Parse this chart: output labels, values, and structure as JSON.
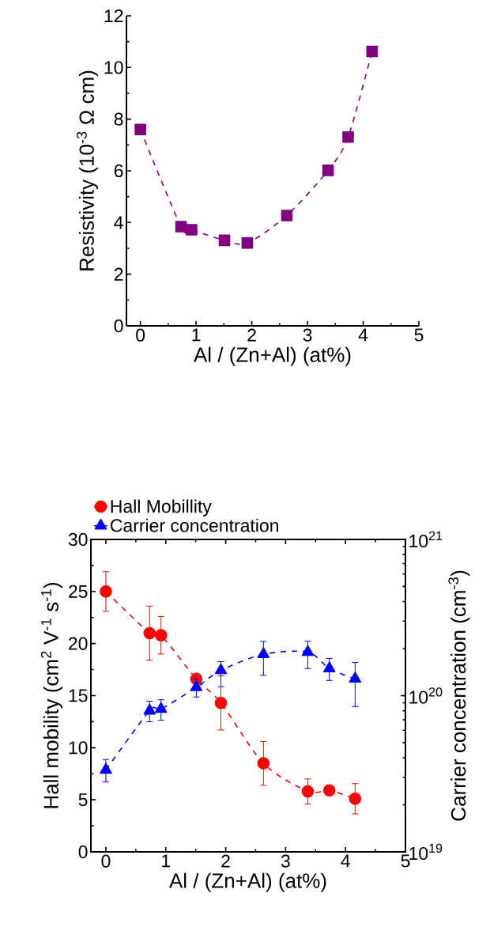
{
  "chart_data": [
    {
      "type": "line",
      "xlabel": "Al / (Zn+Al) (at%)",
      "ylabel": "Resistivity (10$^{-3}$ Ω cm)",
      "x": [
        0,
        0.73,
        0.92,
        1.51,
        1.92,
        2.63,
        3.37,
        3.73,
        4.16
      ],
      "series": [
        {
          "color": "#800080",
          "marker": "square",
          "line_style": "dashed",
          "values": [
            7.6,
            3.84,
            3.72,
            3.31,
            3.21,
            4.27,
            6.02,
            7.31,
            10.62
          ]
        }
      ],
      "xlim": [
        -0.25,
        5
      ],
      "xticks": [
        0,
        1,
        2,
        3,
        4,
        5
      ],
      "ylim": [
        0,
        12
      ],
      "yticks": [
        0,
        2,
        4,
        6,
        8,
        10,
        12
      ]
    },
    {
      "type": "line",
      "xlabel": "Al / (Zn+Al) (at%)",
      "ylabel": "Hall mobility (cm$^{2}$ V$^{-1}$ s$^{-1}$)",
      "y2label": "Carrier concentration (cm$^{-3}$)",
      "x": [
        0,
        0.73,
        0.92,
        1.51,
        1.92,
        2.63,
        3.37,
        3.73,
        4.16
      ],
      "series": [
        {
          "name": "Hall Mobillity",
          "color": "#ff0000",
          "marker": "circle",
          "line_style": "dashed",
          "values": [
            25.0,
            21.0,
            20.8,
            16.6,
            14.3,
            8.5,
            5.8,
            5.9,
            5.1
          ],
          "errors": [
            1.9,
            2.6,
            1.8,
            null,
            2.6,
            2.1,
            1.2,
            null,
            1.45
          ]
        },
        {
          "name": "Carrier concentration",
          "color": "#0000ff",
          "marker": "triangle",
          "line_style": "dashed",
          "axis": "y2",
          "values": [
            3.34e+19,
            8e+19,
            8.2e+19,
            1.13e+20,
            1.45e+20,
            1.84e+20,
            1.9e+20,
            1.49e+20,
            1.28e+20
          ],
          "errors": [
            [
              2.8e+19,
              3.9e+19
            ],
            [
              6.8e+19,
              9.2e+19
            ],
            [
              6.95e+19,
              9.4e+19
            ],
            [
              9.8e+19,
              1.28e+20
            ],
            [
              1.14e+20,
              1.65e+20
            ],
            [
              1.35e+20,
              2.22e+20
            ],
            [
              1.49e+20,
              2.23e+20
            ],
            [
              1.25e+20,
              1.73e+20
            ],
            [
              8.5e+19,
              1.63e+20
            ]
          ]
        }
      ],
      "xlim": [
        -0.25,
        5
      ],
      "xticks": [
        0,
        1,
        2,
        3,
        4,
        5
      ],
      "ylim": [
        0,
        30
      ],
      "yticks": [
        0,
        5,
        10,
        15,
        20,
        25,
        30
      ],
      "log": "y2",
      "y2lim": [
        1e+19,
        1e+21
      ],
      "y2ticks": [
        {
          "value": 1e+19,
          "label": "10$^{19}$"
        },
        {
          "value": 1e+20,
          "label": "10$^{20}$"
        },
        {
          "value": 1e+21,
          "label": "10$^{21}$"
        }
      ],
      "legend": "top"
    }
  ]
}
